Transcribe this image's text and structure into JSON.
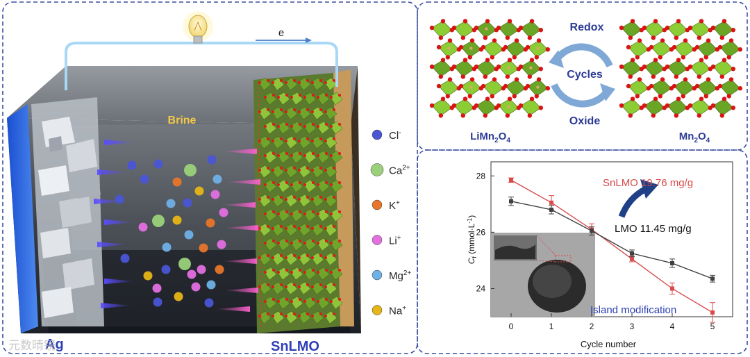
{
  "battery": {
    "electron_label": "e",
    "electrolyte_label": "Brine",
    "left_electrode_label": "Ag",
    "right_electrode_label": "SnLMO",
    "watermark_text": "元数晴镜"
  },
  "legend": {
    "items": [
      {
        "symbol": "Cl",
        "charge": "-",
        "color": "#4a55d6"
      },
      {
        "symbol": "Ca",
        "charge": "2+",
        "color": "#9ad07a"
      },
      {
        "symbol": "K",
        "charge": "+",
        "color": "#e8752a"
      },
      {
        "symbol": "Li",
        "charge": "+",
        "color": "#e36fe0"
      },
      {
        "symbol": "Mg",
        "charge": "2+",
        "color": "#6fb0e6"
      },
      {
        "symbol": "Na",
        "charge": "+",
        "color": "#e6b516"
      }
    ]
  },
  "redox": {
    "top_label": "Redox",
    "middle_label": "Cycles",
    "bottom_label": "Oxide",
    "left_formula": {
      "base": "LiMn",
      "sub1": "2",
      "mid": "O",
      "sub2": "4"
    },
    "right_formula": {
      "base": "Mn",
      "sub1": "2",
      "mid": "O",
      "sub2": "4"
    }
  },
  "chart_data": {
    "type": "line",
    "x": [
      0,
      1,
      2,
      3,
      4,
      5
    ],
    "xlim": [
      -0.5,
      5.5
    ],
    "ylim": [
      23,
      28.5
    ],
    "xticks": [
      "0",
      "1",
      "2",
      "3",
      "4",
      "5"
    ],
    "yticks": [
      "24",
      "26",
      "28"
    ],
    "xlabel": "Cycle number",
    "ylabel": {
      "main": "C",
      "sub": "f",
      "unit": "(mmol·L",
      "sup": "-1",
      "close": ")"
    },
    "series": [
      {
        "name": "SnLMO 19.76 mg/g",
        "color": "#d94b4b",
        "values": [
          27.85,
          27.05,
          26.1,
          25.05,
          24.0,
          23.15
        ],
        "errors": [
          0.08,
          0.25,
          0.2,
          0.1,
          0.2,
          0.35
        ]
      },
      {
        "name": "LMO 11.45 mg/g",
        "color": "#404040",
        "values": [
          27.1,
          26.8,
          26.05,
          25.25,
          24.9,
          24.35
        ],
        "errors": [
          0.15,
          0.15,
          0.15,
          0.12,
          0.15,
          0.12
        ]
      }
    ],
    "annotation": "Island modification"
  }
}
